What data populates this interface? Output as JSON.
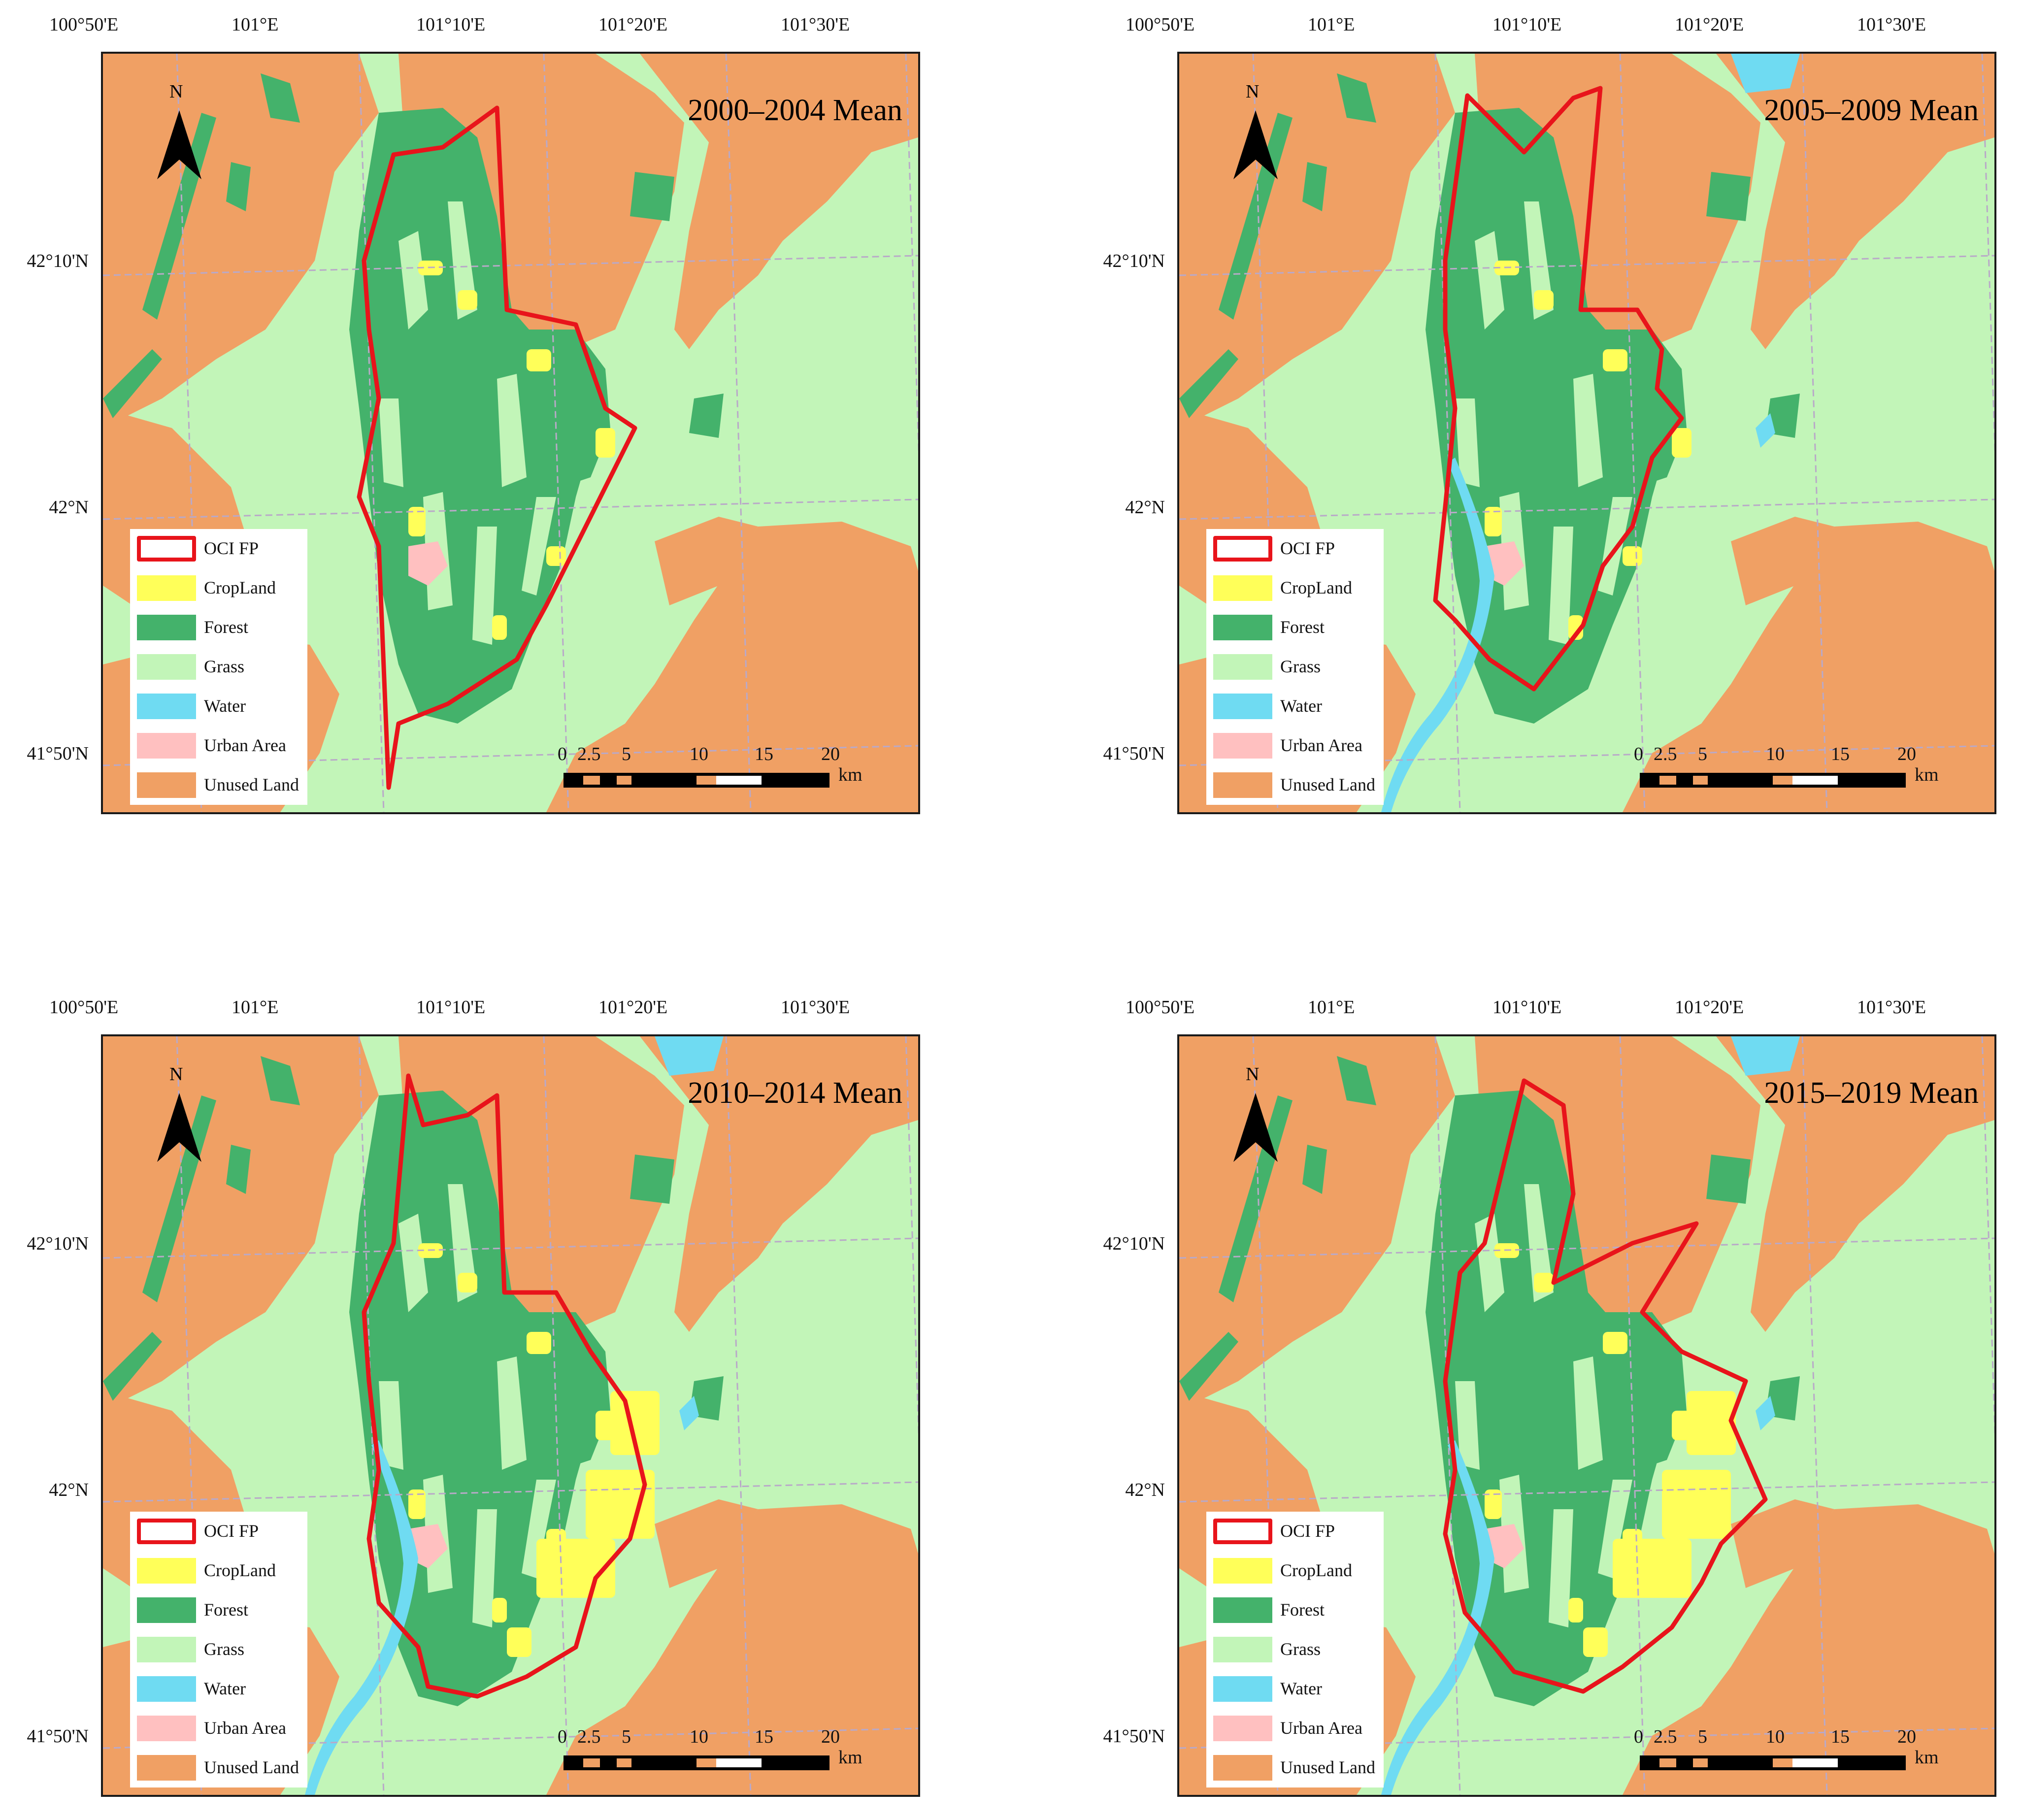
{
  "colors": {
    "cropland": "#ffff59",
    "forest": "#44b26b",
    "grass": "#c2f5b8",
    "water": "#6fdbf2",
    "urban": "#ffc0c0",
    "unused": "#f0a064",
    "oci": "#e8141b",
    "grid": "#b9a9c8"
  },
  "axes": {
    "lon_labels": [
      "100°50'E",
      "101°E",
      "101°10'E",
      "101°20'E",
      "101°30'E"
    ],
    "lat_labels": [
      "42°10'N",
      "42°N",
      "41°50'N"
    ]
  },
  "north_label": "N",
  "legend": [
    {
      "key": "oci",
      "label": "OCI FP",
      "icon": "red-outline-box"
    },
    {
      "key": "cropland",
      "label": "CropLand"
    },
    {
      "key": "forest",
      "label": "Forest"
    },
    {
      "key": "grass",
      "label": "Grass"
    },
    {
      "key": "water",
      "label": "Water"
    },
    {
      "key": "urban",
      "label": "Urban Area"
    },
    {
      "key": "unused",
      "label": "Unused Land"
    }
  ],
  "scalebar": {
    "ticks": [
      "0",
      "2.5",
      "5",
      "10",
      "15",
      "20"
    ],
    "unit": "km"
  },
  "panels": [
    {
      "title": "2000–2004 Mean"
    },
    {
      "title": "2005–2009 Mean"
    },
    {
      "title": "2010–2014 Mean"
    },
    {
      "title": "2015–2019 Mean"
    }
  ]
}
